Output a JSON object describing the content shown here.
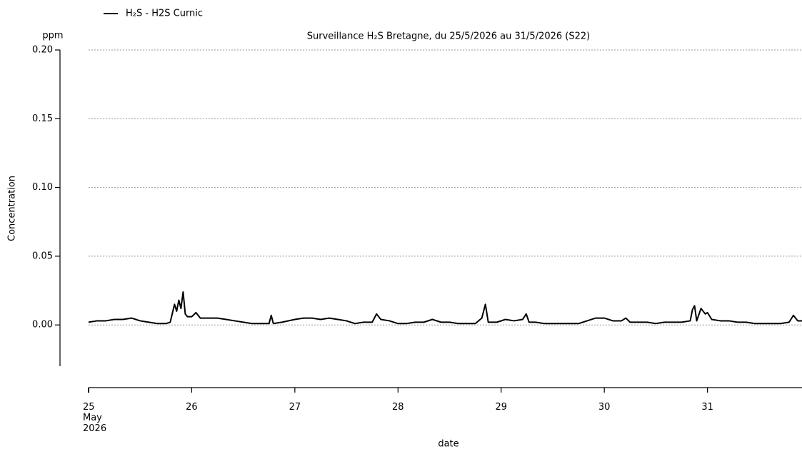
{
  "chart_data": {
    "type": "line",
    "title": "Surveillance H₂S Bretagne, du 25/5/2026 au 31/5/2026 (S22)",
    "y_unit": "ppm",
    "ylabel": "Concentration",
    "xlabel": "date",
    "grid": true,
    "legend": "top-left",
    "ylim": [
      -0.03,
      0.2
    ],
    "yticks": [
      {
        "value": 0,
        "label": "0.00"
      },
      {
        "value": 0.05,
        "label": "0.05"
      },
      {
        "value": 0.1,
        "label": "0.10"
      },
      {
        "value": 0.15,
        "label": "0.15"
      },
      {
        "value": 0.2,
        "label": "0.20"
      }
    ],
    "xlim": [
      "2026-05-25T00:00",
      "2026-05-31T22:00"
    ],
    "xticks": [
      {
        "value": "2026-05-25T00:00",
        "label": "25\nMay\n2026"
      },
      {
        "value": "2026-05-26T00:00",
        "label": "26"
      },
      {
        "value": "2026-05-27T00:00",
        "label": "27"
      },
      {
        "value": "2026-05-28T00:00",
        "label": "28"
      },
      {
        "value": "2026-05-29T00:00",
        "label": "29"
      },
      {
        "value": "2026-05-30T00:00",
        "label": "30"
      },
      {
        "value": "2026-05-31T00:00",
        "label": "31"
      }
    ],
    "x": [
      "2026-05-25T00:00",
      "2026-05-25T02:00",
      "2026-05-25T04:00",
      "2026-05-25T06:00",
      "2026-05-25T08:00",
      "2026-05-25T10:00",
      "2026-05-25T12:00",
      "2026-05-25T14:00",
      "2026-05-25T16:00",
      "2026-05-25T18:00",
      "2026-05-25T19:00",
      "2026-05-25T20:00",
      "2026-05-25T20:30",
      "2026-05-25T21:00",
      "2026-05-25T21:30",
      "2026-05-25T22:00",
      "2026-05-25T22:30",
      "2026-05-25T23:00",
      "2026-05-26T00:00",
      "2026-05-26T01:00",
      "2026-05-26T02:00",
      "2026-05-26T04:00",
      "2026-05-26T06:00",
      "2026-05-26T08:00",
      "2026-05-26T10:00",
      "2026-05-26T12:00",
      "2026-05-26T14:00",
      "2026-05-26T16:00",
      "2026-05-26T18:00",
      "2026-05-26T18:30",
      "2026-05-26T19:00",
      "2026-05-26T21:00",
      "2026-05-27T00:00",
      "2026-05-27T02:00",
      "2026-05-27T04:00",
      "2026-05-27T06:00",
      "2026-05-27T08:00",
      "2026-05-27T10:00",
      "2026-05-27T12:00",
      "2026-05-27T14:00",
      "2026-05-27T16:00",
      "2026-05-27T18:00",
      "2026-05-27T19:00",
      "2026-05-27T20:00",
      "2026-05-27T22:00",
      "2026-05-28T00:00",
      "2026-05-28T02:00",
      "2026-05-28T04:00",
      "2026-05-28T06:00",
      "2026-05-28T08:00",
      "2026-05-28T10:00",
      "2026-05-28T12:00",
      "2026-05-28T14:00",
      "2026-05-28T16:00",
      "2026-05-28T18:00",
      "2026-05-28T19:30",
      "2026-05-28T20:20",
      "2026-05-28T21:00",
      "2026-05-28T23:00",
      "2026-05-29T01:00",
      "2026-05-29T03:00",
      "2026-05-29T05:00",
      "2026-05-29T05:50",
      "2026-05-29T06:30",
      "2026-05-29T08:00",
      "2026-05-29T10:00",
      "2026-05-29T12:00",
      "2026-05-29T14:00",
      "2026-05-29T16:00",
      "2026-05-29T18:00",
      "2026-05-29T20:00",
      "2026-05-29T22:00",
      "2026-05-30T00:00",
      "2026-05-30T02:00",
      "2026-05-30T04:00",
      "2026-05-30T05:00",
      "2026-05-30T06:00",
      "2026-05-30T08:00",
      "2026-05-30T10:00",
      "2026-05-30T12:00",
      "2026-05-30T14:00",
      "2026-05-30T16:00",
      "2026-05-30T18:00",
      "2026-05-30T20:00",
      "2026-05-30T20:30",
      "2026-05-30T21:00",
      "2026-05-30T21:30",
      "2026-05-30T22:30",
      "2026-05-30T23:30",
      "2026-05-31T00:00",
      "2026-05-31T01:00",
      "2026-05-31T03:00",
      "2026-05-31T05:00",
      "2026-05-31T07:00",
      "2026-05-31T09:00",
      "2026-05-31T11:00",
      "2026-05-31T13:00",
      "2026-05-31T15:00",
      "2026-05-31T17:00",
      "2026-05-31T19:00",
      "2026-05-31T20:00",
      "2026-05-31T21:00",
      "2026-05-31T22:00"
    ],
    "series": [
      {
        "name": "H₂S - H2S Curnic",
        "color": "#000000",
        "values": [
          0.002,
          0.003,
          0.003,
          0.004,
          0.004,
          0.005,
          0.003,
          0.002,
          0.001,
          0.001,
          0.002,
          0.015,
          0.01,
          0.018,
          0.012,
          0.024,
          0.008,
          0.006,
          0.006,
          0.009,
          0.005,
          0.005,
          0.005,
          0.004,
          0.003,
          0.002,
          0.001,
          0.001,
          0.001,
          0.007,
          0.001,
          0.002,
          0.004,
          0.005,
          0.005,
          0.004,
          0.005,
          0.004,
          0.003,
          0.001,
          0.002,
          0.002,
          0.008,
          0.004,
          0.003,
          0.001,
          0.001,
          0.002,
          0.002,
          0.004,
          0.002,
          0.002,
          0.001,
          0.001,
          0.001,
          0.005,
          0.015,
          0.002,
          0.002,
          0.004,
          0.003,
          0.004,
          0.008,
          0.002,
          0.002,
          0.001,
          0.001,
          0.001,
          0.001,
          0.001,
          0.003,
          0.005,
          0.005,
          0.003,
          0.003,
          0.005,
          0.002,
          0.002,
          0.002,
          0.001,
          0.002,
          0.002,
          0.002,
          0.003,
          0.011,
          0.014,
          0.003,
          0.012,
          0.008,
          0.009,
          0.004,
          0.003,
          0.003,
          0.002,
          0.002,
          0.001,
          0.001,
          0.001,
          0.001,
          0.002,
          0.007,
          0.003,
          0.003
        ]
      }
    ]
  }
}
